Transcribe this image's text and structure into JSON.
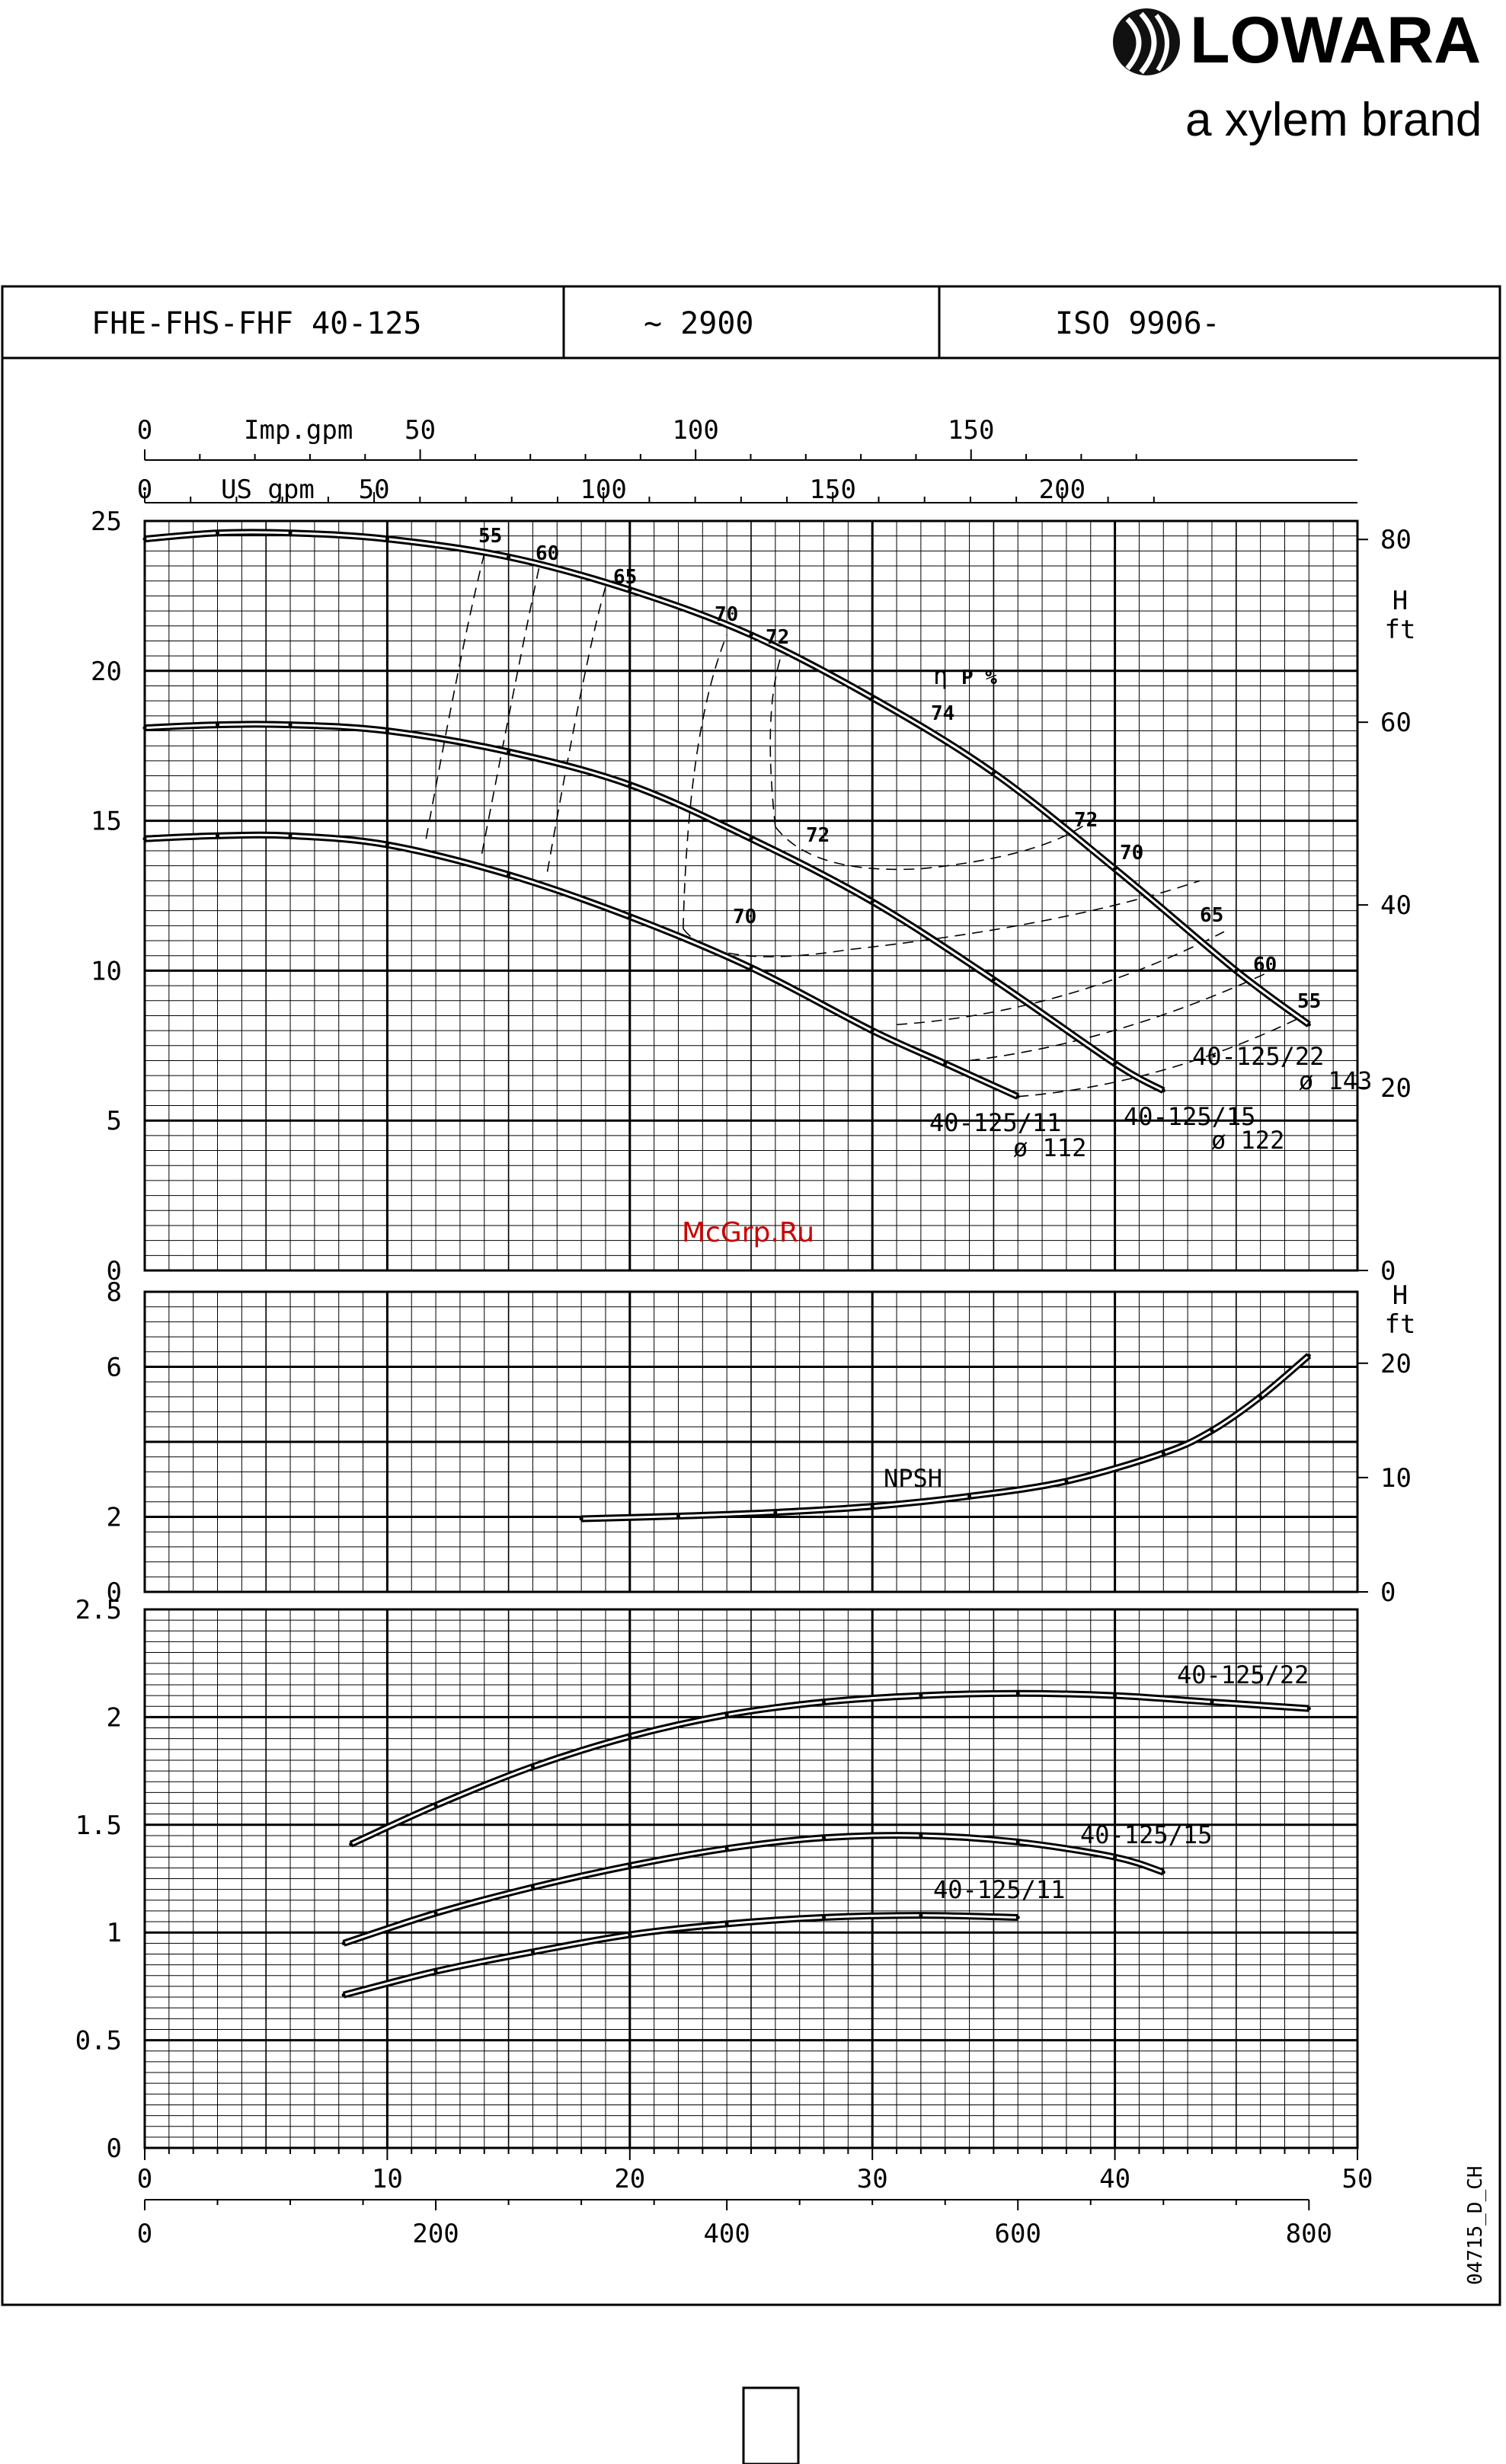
{
  "brand": {
    "name": "LOWARA",
    "tagline": "a xylem brand"
  },
  "header": {
    "model": "FHE-FHS-FHF 40-125",
    "speed": "~ 2900",
    "standard": "ISO 9906-"
  },
  "watermark": "McGrp.Ru",
  "code": "04715_D_CH",
  "colors": {
    "line": "#000000",
    "watermark": "#cc0000"
  },
  "top_axes": {
    "imp_label": "Imp.gpm",
    "imp_ticks": [
      "0",
      "50",
      "100",
      "150"
    ],
    "us_label": "US gpm",
    "us_ticks": [
      "0",
      "50",
      "100",
      "150",
      "200"
    ]
  },
  "bottom_axes": {
    "m3h_ticks": [
      "0",
      "10",
      "20",
      "30",
      "40",
      "50"
    ],
    "lmin_ticks": [
      "0",
      "200",
      "400",
      "600",
      "800"
    ]
  },
  "chart_data": [
    {
      "type": "line",
      "panel": "head",
      "xlim": [
        0,
        50
      ],
      "ylim": [
        0,
        25
      ],
      "y_ticks": [
        "0",
        "5",
        "10",
        "15",
        "20",
        "25"
      ],
      "right_label": "H ft",
      "right_ticks": [
        "0",
        "20",
        "40",
        "60",
        "80"
      ],
      "series": [
        {
          "name": "40-125/22",
          "sublabel": "ø 143",
          "x": [
            0,
            3,
            6,
            10,
            15,
            20,
            25,
            30,
            35,
            40,
            45,
            48
          ],
          "y": [
            24.4,
            24.6,
            24.6,
            24.4,
            23.8,
            22.7,
            21.2,
            19.1,
            16.6,
            13.4,
            10.0,
            8.2
          ]
        },
        {
          "name": "40-125/15",
          "sublabel": "ø 122",
          "x": [
            0,
            3,
            6,
            10,
            15,
            20,
            25,
            30,
            35,
            40,
            42
          ],
          "y": [
            18.1,
            18.2,
            18.2,
            18.0,
            17.3,
            16.2,
            14.4,
            12.3,
            9.7,
            6.9,
            6.0
          ]
        },
        {
          "name": "40-125/11",
          "sublabel": "ø 112",
          "x": [
            0,
            3,
            6,
            10,
            15,
            20,
            25,
            30,
            33,
            36
          ],
          "y": [
            14.4,
            14.5,
            14.5,
            14.2,
            13.2,
            11.8,
            10.1,
            8.0,
            6.9,
            5.8
          ]
        }
      ],
      "efficiency": {
        "title": "ηP %",
        "labels": [
          "55",
          "60",
          "65",
          "70",
          "72",
          "74",
          "72",
          "70",
          "65",
          "60",
          "55",
          "72",
          "70"
        ]
      }
    },
    {
      "type": "line",
      "panel": "npsh",
      "xlim": [
        0,
        50
      ],
      "ylim": [
        0,
        8
      ],
      "y_ticks": [
        "0",
        "2",
        "6",
        "8"
      ],
      "right_label": "H ft",
      "right_ticks": [
        "0",
        "10",
        "20"
      ],
      "series": [
        {
          "name": "NPSH",
          "x": [
            18,
            22,
            26,
            30,
            34,
            38,
            42,
            44,
            46,
            48
          ],
          "y": [
            1.95,
            2.02,
            2.12,
            2.28,
            2.55,
            2.95,
            3.7,
            4.3,
            5.2,
            6.3
          ]
        }
      ]
    },
    {
      "type": "line",
      "panel": "power",
      "xlim": [
        0,
        50
      ],
      "ylim": [
        0,
        2.5
      ],
      "y_ticks": [
        "0",
        "0.5",
        "1",
        "1.5",
        "2",
        "2.5"
      ],
      "series": [
        {
          "name": "40-125/22",
          "x": [
            8.5,
            12,
            16,
            20,
            24,
            28,
            32,
            36,
            40,
            44,
            48
          ],
          "y": [
            1.41,
            1.59,
            1.77,
            1.91,
            2.01,
            2.07,
            2.1,
            2.11,
            2.1,
            2.07,
            2.04
          ]
        },
        {
          "name": "40-125/15",
          "x": [
            8.2,
            12,
            16,
            20,
            24,
            28,
            32,
            36,
            40,
            42
          ],
          "y": [
            0.95,
            1.09,
            1.21,
            1.31,
            1.39,
            1.44,
            1.45,
            1.42,
            1.35,
            1.28
          ]
        },
        {
          "name": "40-125/11",
          "x": [
            8.2,
            12,
            16,
            20,
            24,
            28,
            32,
            36
          ],
          "y": [
            0.71,
            0.82,
            0.91,
            0.99,
            1.04,
            1.07,
            1.08,
            1.07
          ]
        }
      ]
    }
  ]
}
